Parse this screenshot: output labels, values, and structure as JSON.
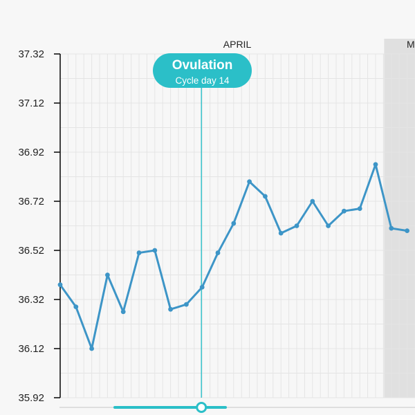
{
  "colors": {
    "background": "#f7f7f7",
    "grid": "#e4e4e4",
    "axis": "#111111",
    "line": "#3d95c7",
    "ovulation": "#2bbfc8",
    "next_cycle_shade": "#e0e0e0"
  },
  "ovulation_badge": {
    "title": "Ovulation",
    "subtitle": "Cycle day 14"
  },
  "chart_data": {
    "type": "line",
    "title": "",
    "xlabel": "",
    "ylabel": "",
    "month_labels": [
      "APRIL",
      "M"
    ],
    "ylim": [
      35.92,
      37.32
    ],
    "yticks": [
      "37.32",
      "37.12",
      "36.92",
      "36.72",
      "36.52",
      "36.32",
      "36.12",
      "35.92"
    ],
    "grid": true,
    "ovulation_day": 10,
    "shaded_from_day": 22,
    "x": [
      1,
      2,
      3,
      4,
      5,
      6,
      7,
      8,
      9,
      10,
      11,
      12,
      13,
      14,
      15,
      16,
      17,
      18,
      19,
      20,
      21,
      22,
      23
    ],
    "series": [
      {
        "values": [
          36.38,
          36.29,
          36.12,
          36.42,
          36.27,
          36.51,
          36.52,
          36.28,
          36.3,
          36.37,
          36.51,
          36.63,
          36.8,
          36.74,
          36.59,
          36.62,
          36.72,
          36.62,
          36.68,
          36.69,
          36.87,
          36.61,
          36.6
        ]
      }
    ]
  },
  "slider": {
    "position": 0.18
  }
}
